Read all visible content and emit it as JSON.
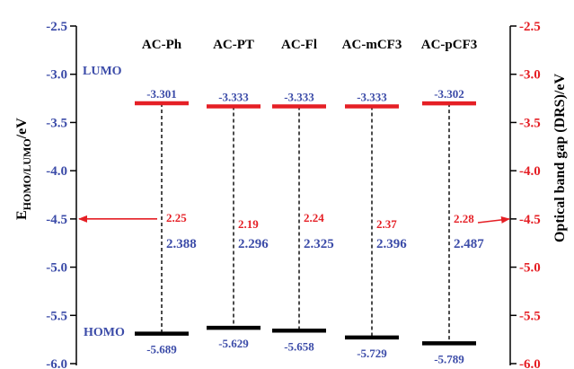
{
  "colors": {
    "left_axis": "#3b4ba8",
    "right_axis": "#e51f25",
    "lumo": "#e51f25",
    "homo": "#000000",
    "gap_optical": "#e51f25",
    "gap_electrochemical": "#3b4ba8"
  },
  "labels": {
    "lumo": "LUMO",
    "homo": "HOMO",
    "y_left_main": "E",
    "y_left_sub": "HOMO/LUMO",
    "y_left_unit": "/eV",
    "y_right": "Optical band gap (DRS)/eV"
  },
  "chart_data": {
    "type": "energy-level-diagram",
    "ylabel": "EHOMO/LUMO/eV",
    "ylabel_right": "Optical band gap (DRS)/eV",
    "ylim": [
      -6.0,
      -2.5
    ],
    "yticks": [
      "-2.5",
      "-3.0",
      "-3.5",
      "-4.0",
      "-4.5",
      "-5.0",
      "-5.5",
      "-6.0"
    ],
    "ylim_right": [
      -6.0,
      -2.5
    ],
    "yticks_right": [
      "-2.5",
      "-3.0",
      "-3.5",
      "-4.0",
      "-4.5",
      "-5.0",
      "-5.5",
      "-6.0"
    ],
    "arrows": "left arrow points to left axis, right arrow points to right axis at -4.5",
    "categories": [
      "AC-Ph",
      "AC-PT",
      "AC-Fl",
      "AC-mCF3",
      "AC-pCF3"
    ],
    "series": [
      {
        "name": "LUMO",
        "values": [
          -3.301,
          -3.333,
          -3.333,
          -3.333,
          -3.302
        ],
        "labels": [
          "-3.301",
          "-3.333",
          "-3.333",
          "-3.333",
          "-3.302"
        ]
      },
      {
        "name": "HOMO",
        "values": [
          -5.689,
          -5.629,
          -5.658,
          -5.729,
          -5.789
        ],
        "labels": [
          "-5.689",
          "-5.629",
          "-5.658",
          "-5.729",
          "-5.789"
        ]
      },
      {
        "values": [
          2.25,
          2.19,
          2.24,
          2.37,
          2.28
        ],
        "labels": [
          "2.25",
          "2.19",
          "2.24",
          "2.37",
          "2.28"
        ]
      },
      {
        "values": [
          2.388,
          2.296,
          2.325,
          2.396,
          2.487
        ],
        "labels": [
          "2.388",
          "2.296",
          "2.325",
          "2.396",
          "2.487"
        ]
      }
    ]
  }
}
